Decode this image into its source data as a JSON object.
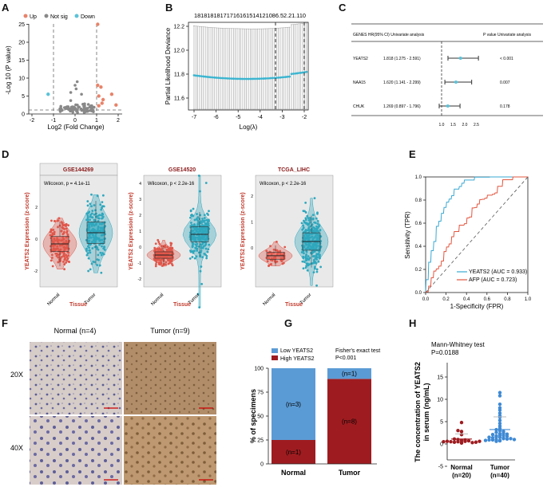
{
  "panel_labels": [
    "A",
    "B",
    "C",
    "D",
    "E",
    "F",
    "G",
    "H"
  ],
  "panelA": {
    "legend": [
      "Up",
      "Not sig",
      "Down"
    ],
    "colors": {
      "up": "#e8836a",
      "ns": "#888888",
      "down": "#5bc2d8"
    },
    "ylabel": "-Log 10 (P value)",
    "xlabel": "Log2 (Fold Change)",
    "xticks": [
      "-2",
      "-1",
      "0",
      "1",
      "2"
    ],
    "yticks": [
      "0",
      "5",
      "10",
      "15",
      "20",
      "25"
    ]
  },
  "panelB": {
    "top_counts": "18181818171716161514121086.52.21.110",
    "xlabel": "Log(λ)",
    "ylabel": "Partial Likelihood Deviance",
    "xticks": [
      "-7",
      "-6",
      "-5",
      "-4",
      "-3",
      "-2"
    ],
    "yticks": [
      "11.6",
      "11.8",
      "12.0",
      "12.2"
    ]
  },
  "panelC": {
    "header_genes": "GENES  HR(95% CI) Univariate analysis",
    "header_p": "P value Univariate analysis",
    "rows": [
      {
        "gene": "YEATS2",
        "hr": "1.818 (1.275 - 2.591)",
        "p": "< 0.001",
        "est": 1.818,
        "lo": 1.275,
        "hi": 2.591
      },
      {
        "gene": "NAA15",
        "hr": "1.620 (1.141 - 2.299)",
        "p": "0.007",
        "est": 1.62,
        "lo": 1.141,
        "hi": 2.299
      },
      {
        "gene": "CHUK",
        "hr": "1.269 (0.897 - 1.796)",
        "p": "0.178",
        "est": 1.269,
        "lo": 0.897,
        "hi": 1.796
      }
    ],
    "xticks": [
      "1.0",
      "1.5",
      "2.0",
      "2.5"
    ]
  },
  "panelD": {
    "plots": [
      {
        "title": "GSE144269",
        "stat": "Wilcoxon, p = 4.1e-11",
        "yticks": [
          "-2",
          "0",
          "2"
        ]
      },
      {
        "title": "GSE14520",
        "stat": "Wilcoxon, p < 2.2e-16",
        "yticks": [
          "-2",
          "-1",
          "0",
          "1",
          "2",
          "3",
          "4"
        ]
      },
      {
        "title": "TCGA_LIHC",
        "stat": "Wilcoxon, p < 2.2e-16",
        "yticks": [
          "0",
          "1",
          "2"
        ]
      }
    ],
    "ylabel": "YEATS2 Expression (z-score)",
    "xcats": [
      "Normal",
      "Tumor"
    ],
    "xlabel": "Tissue",
    "colors": {
      "normal": "#e0564a",
      "tumor": "#2fa7bd"
    }
  },
  "panelE": {
    "ylabel": "Sensitivity (TPR)",
    "xlabel": "1-Specificity (FPR)",
    "ticks": [
      "0.0",
      "0.2",
      "0.4",
      "0.6",
      "0.8",
      "1.0"
    ],
    "legend": [
      "YEATS2 (AUC = 0.933)",
      "AFP (AUC = 0.723)"
    ],
    "colors": {
      "yeats2": "#3aa9d3",
      "afp": "#e3563f"
    }
  },
  "panelF": {
    "col_labels": [
      "Normal (n=4)",
      "Tumor (n=9)"
    ],
    "row_labels": [
      "20X",
      "40X"
    ]
  },
  "panelG": {
    "legend": [
      "Low YEATS2",
      "High YEATS2"
    ],
    "colors": {
      "low": "#5b9bd5",
      "high": "#9e1c20"
    },
    "stat_line1": "Fisher's exact test",
    "stat_line2": "P<0.001",
    "ylabel": "% of specimens",
    "yticks": [
      "0",
      "25",
      "50",
      "75",
      "100"
    ],
    "categories": [
      "Normal",
      "Tumor"
    ],
    "low_pct": [
      75,
      11.1
    ],
    "high_pct": [
      25,
      88.9
    ],
    "low_labels": [
      "(n=3)",
      "(n=1)"
    ],
    "high_labels": [
      "(n=1)",
      "(n=8)"
    ]
  },
  "panelH": {
    "stat_line1": "Mann-Whitney test",
    "stat_line2": "P=0.0188",
    "ylabel_line1": "The concentration of YEATS2",
    "ylabel_line2": "in serum (ng/mL)",
    "yticks": [
      "-5",
      "0",
      "5",
      "10",
      "15"
    ],
    "categories": [
      {
        "name": "Normal",
        "n": "(n=20)"
      },
      {
        "name": "Tumor",
        "n": "(n=40)"
      }
    ],
    "colors": {
      "normal": "#9e1c20",
      "tumor": "#3f8ad4"
    }
  }
}
